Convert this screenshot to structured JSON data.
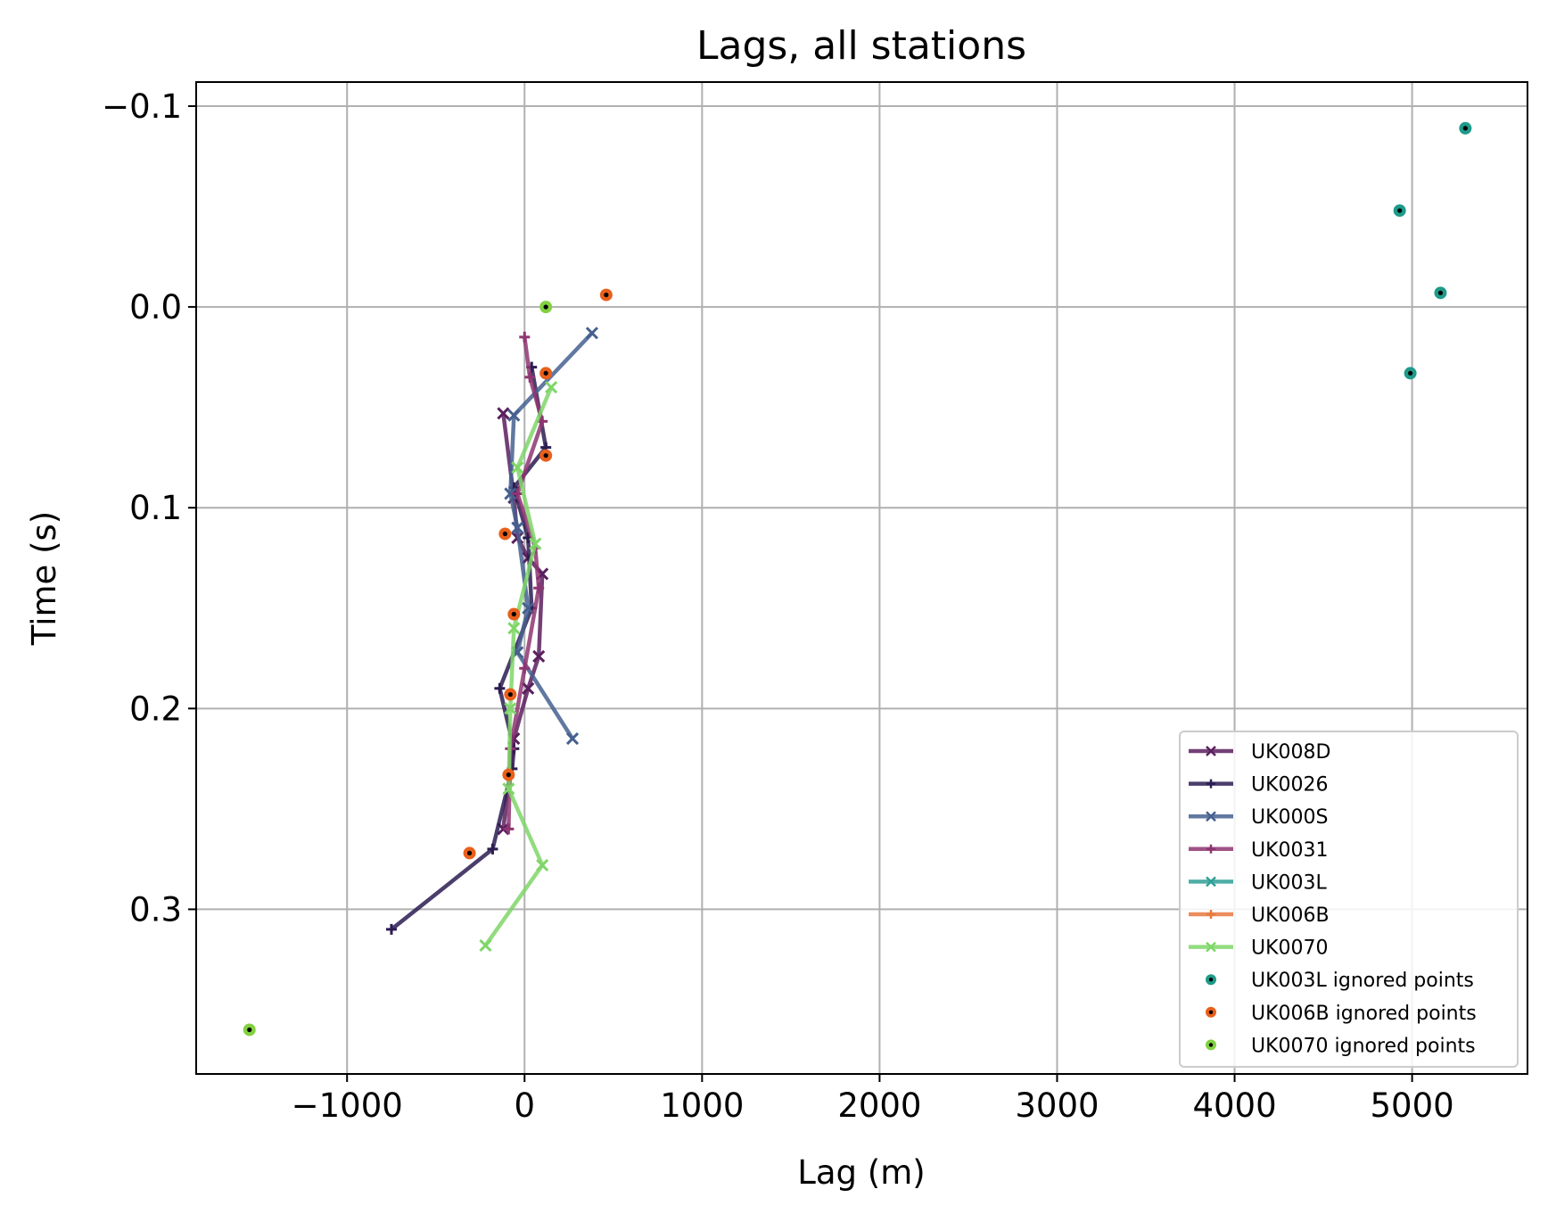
{
  "chart_data": {
    "type": "line",
    "title": "Lags, all stations",
    "xlabel": "Lag (m)",
    "ylabel": "Time (s)",
    "xlim": [
      -1850,
      5650
    ],
    "ylim": [
      0.382,
      -0.112
    ],
    "y_inverted": true,
    "xticks": [
      -1000,
      0,
      1000,
      2000,
      3000,
      4000,
      5000
    ],
    "xtick_labels": [
      "−1000",
      "0",
      "1000",
      "2000",
      "3000",
      "4000",
      "5000"
    ],
    "yticks": [
      -0.1,
      0.0,
      0.1,
      0.2,
      0.3
    ],
    "ytick_labels": [
      "−0.1",
      "0.0",
      "0.1",
      "0.2",
      "0.3"
    ],
    "grid": true,
    "legend_position": "lower-right",
    "series": [
      {
        "name": "UK008D",
        "color": "#5a1f5e",
        "marker": "x",
        "x": [
          -120,
          -60,
          -40,
          20,
          100,
          80,
          20,
          -60,
          -120
        ],
        "y": [
          0.053,
          0.095,
          0.115,
          0.125,
          0.133,
          0.174,
          0.19,
          0.215,
          0.26
        ]
      },
      {
        "name": "UK0026",
        "color": "#2c1c52",
        "marker": "+",
        "x": [
          40,
          120,
          -60,
          20,
          40,
          -140,
          -60,
          -70,
          -180,
          -750
        ],
        "y": [
          0.03,
          0.07,
          0.09,
          0.115,
          0.15,
          0.19,
          0.22,
          0.23,
          0.27,
          0.31
        ]
      },
      {
        "name": "UK000S",
        "color": "#45608f",
        "marker": "x",
        "x": [
          380,
          -60,
          -80,
          -40,
          20,
          -40,
          270
        ],
        "y": [
          0.013,
          0.054,
          0.093,
          0.11,
          0.15,
          0.172,
          0.215
        ]
      },
      {
        "name": "UK0031",
        "color": "#8e3571",
        "marker": "+",
        "x": [
          0,
          30,
          100,
          -40,
          60,
          80,
          0,
          -80,
          -90
        ],
        "y": [
          0.015,
          0.035,
          0.057,
          0.093,
          0.12,
          0.14,
          0.18,
          0.22,
          0.26
        ]
      },
      {
        "name": "UK003L",
        "color": "#2fa096",
        "marker": "x",
        "x": [],
        "y": []
      },
      {
        "name": "UK006B",
        "color": "#e8793f",
        "marker": "+",
        "x": [],
        "y": []
      },
      {
        "name": "UK0070",
        "color": "#7fd668",
        "marker": "x",
        "x": [
          150,
          -40,
          60,
          -60,
          -80,
          -90,
          100,
          -220
        ],
        "y": [
          0.04,
          0.08,
          0.118,
          0.16,
          0.2,
          0.24,
          0.278,
          0.318
        ]
      }
    ],
    "ignored_points": [
      {
        "name": "UK003L ignored points",
        "color": "#1f9a8a",
        "x": [
          5300,
          4930,
          5160,
          4990
        ],
        "y": [
          -0.089,
          -0.048,
          -0.007,
          0.033
        ]
      },
      {
        "name": "UK006B ignored points",
        "color": "#e8601c",
        "x": [
          460,
          120,
          120,
          -110,
          -60,
          -80,
          -90,
          -310
        ],
        "y": [
          -0.006,
          0.033,
          0.074,
          0.113,
          0.153,
          0.193,
          0.233,
          0.272
        ]
      },
      {
        "name": "UK0070 ignored points",
        "color": "#82d13f",
        "x": [
          120,
          -1550
        ],
        "y": [
          0.0,
          0.36
        ]
      }
    ]
  }
}
